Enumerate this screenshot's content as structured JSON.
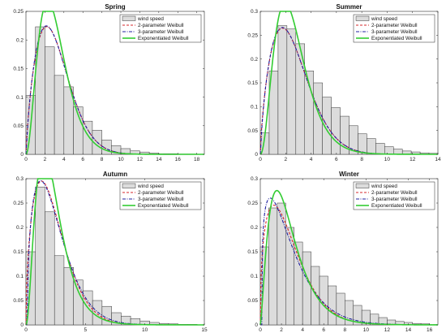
{
  "legend": [
    "wind speed",
    "2-parameter Weibull",
    "3-parameter Weibull",
    "Exponentiated Weibull"
  ],
  "colors": {
    "bar_fill": "#dcdcdc",
    "bar_edge": "#333333",
    "w2": "#d62728",
    "w3": "#2020a0",
    "ew": "#33cc33"
  },
  "chart_data": [
    {
      "type": "bar",
      "title": "Spring",
      "xlim": [
        0,
        18.8
      ],
      "ylim": [
        0,
        0.25
      ],
      "xticks": [
        0,
        2,
        4,
        6,
        8,
        10,
        12,
        14,
        16,
        18
      ],
      "yticks": [
        0,
        0.05,
        0.1,
        0.15,
        0.2,
        0.25
      ],
      "bin_width": 1,
      "bars": [
        0.103,
        0.223,
        0.188,
        0.138,
        0.118,
        0.083,
        0.058,
        0.042,
        0.025,
        0.015,
        0.01,
        0.006,
        0.004,
        0.002,
        0.001,
        0.001,
        0.0005,
        0.0005
      ],
      "series": [
        {
          "name": "2-parameter Weibull",
          "k": 1.75,
          "c": 3.55,
          "loc": 0
        },
        {
          "name": "3-parameter Weibull",
          "k": 1.72,
          "c": 3.5,
          "loc": 0.04
        },
        {
          "name": "Exponentiated Weibull",
          "k": 1.35,
          "c": 2.35,
          "alpha": 2.2
        }
      ]
    },
    {
      "type": "bar",
      "title": "Summer",
      "xlim": [
        0,
        14
      ],
      "ylim": [
        0,
        0.3
      ],
      "xticks": [
        0,
        2,
        4,
        6,
        8,
        10,
        12,
        14
      ],
      "yticks": [
        0,
        0.05,
        0.1,
        0.15,
        0.2,
        0.25,
        0.3
      ],
      "bin_width": 0.7,
      "bars": [
        0.045,
        0.175,
        0.27,
        0.263,
        0.232,
        0.175,
        0.15,
        0.12,
        0.098,
        0.08,
        0.06,
        0.043,
        0.033,
        0.023,
        0.016,
        0.011,
        0.007,
        0.005,
        0.003,
        0.002
      ],
      "series": [
        {
          "name": "2-parameter Weibull",
          "k": 1.7,
          "c": 2.95,
          "loc": 0
        },
        {
          "name": "3-parameter Weibull",
          "k": 1.68,
          "c": 2.92,
          "loc": 0.03
        },
        {
          "name": "Exponentiated Weibull",
          "k": 1.3,
          "c": 1.9,
          "alpha": 2.4
        }
      ]
    },
    {
      "type": "bar",
      "title": "Autumn",
      "xlim": [
        0,
        15
      ],
      "ylim": [
        0,
        0.3
      ],
      "xticks": [
        0,
        5,
        10,
        15
      ],
      "yticks": [
        0,
        0.05,
        0.1,
        0.15,
        0.2,
        0.25,
        0.3
      ],
      "bin_width": 0.8,
      "bars": [
        0.15,
        0.283,
        0.232,
        0.142,
        0.118,
        0.092,
        0.07,
        0.05,
        0.038,
        0.025,
        0.018,
        0.013,
        0.008,
        0.005,
        0.003,
        0.002,
        0.001,
        0.001
      ],
      "series": [
        {
          "name": "2-parameter Weibull",
          "k": 1.55,
          "c": 2.55,
          "loc": 0
        },
        {
          "name": "3-parameter Weibull",
          "k": 1.45,
          "c": 2.5,
          "loc": 0.12
        },
        {
          "name": "Exponentiated Weibull",
          "k": 1.1,
          "c": 1.4,
          "alpha": 2.8
        }
      ]
    },
    {
      "type": "bar",
      "title": "Winter",
      "xlim": [
        0,
        16.8
      ],
      "ylim": [
        0,
        0.3
      ],
      "xticks": [
        0,
        2,
        4,
        6,
        8,
        10,
        12,
        14,
        16
      ],
      "yticks": [
        0,
        0.05,
        0.1,
        0.15,
        0.2,
        0.25,
        0.3
      ],
      "bin_width": 0.8,
      "bars": [
        0.16,
        0.24,
        0.25,
        0.2,
        0.17,
        0.15,
        0.12,
        0.1,
        0.08,
        0.065,
        0.05,
        0.04,
        0.03,
        0.022,
        0.015,
        0.01,
        0.007,
        0.005,
        0.003,
        0.002
      ],
      "series": [
        {
          "name": "2-parameter Weibull",
          "k": 1.42,
          "c": 3.0,
          "loc": 0
        },
        {
          "name": "3-parameter Weibull",
          "k": 1.25,
          "c": 2.85,
          "loc": 0.15
        },
        {
          "name": "Exponentiated Weibull",
          "k": 1.05,
          "c": 1.8,
          "alpha": 2.3
        }
      ]
    }
  ]
}
